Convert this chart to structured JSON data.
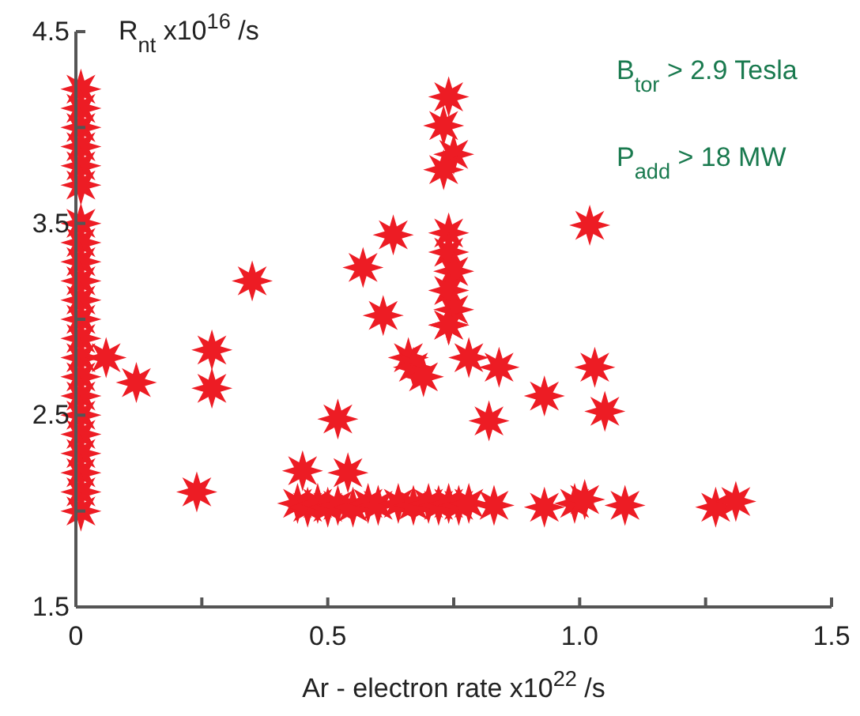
{
  "chart_data": {
    "type": "scatter",
    "ylabel": "R$_{nt}$ x10$^{16}$ /s",
    "xlabel": "Ar - electron rate  x10$^{22}$ /s",
    "annotations": [
      "B$_{tor}$ > 2.9 Tesla",
      "P$_{add}$ > 18 MW"
    ],
    "xlim": [
      0,
      1.5
    ],
    "ylim": [
      1.5,
      4.5
    ],
    "xticks": [
      0,
      {
        "value": 0.25,
        "label": null
      },
      0.5,
      {
        "value": 0.75,
        "label": null
      },
      {
        "value": 1,
        "label": "1.0"
      },
      {
        "value": 1.25,
        "label": null
      },
      1.5
    ],
    "yticks": [
      1.5,
      {
        "value": 2,
        "label": null
      },
      2.5,
      {
        "value": 3,
        "label": null
      },
      3.5,
      {
        "value": 4,
        "label": null
      },
      4.5
    ],
    "grid": false,
    "marker": "star",
    "series": [
      {
        "color": "#ed1c24",
        "x": [
          0.01,
          0.01,
          0.01,
          0.01,
          0.01,
          0.01,
          0.01,
          0.01,
          0.01,
          0.01,
          0.01,
          0.01,
          0.01,
          0.01,
          0.01,
          0.01,
          0.01,
          0.01,
          0.01,
          0.01,
          0.01,
          0.01,
          0.06,
          0.12,
          0.27,
          0.27,
          0.24,
          0.35,
          0.52,
          0.54,
          0.45,
          0.44,
          0.46,
          0.48,
          0.5,
          0.52,
          0.55,
          0.58,
          0.6,
          0.64,
          0.67,
          0.7,
          0.72,
          0.74,
          0.76,
          0.78,
          0.57,
          0.63,
          0.61,
          0.66,
          0.67,
          0.69,
          0.74,
          0.73,
          0.75,
          0.73,
          1.02,
          0.74,
          0.74,
          0.75,
          0.74,
          0.75,
          0.74,
          0.74,
          0.78,
          0.84,
          1.03,
          0.93,
          1.05,
          0.82,
          0.83,
          0.93,
          0.99,
          1.01,
          1.09,
          1.27,
          1.31
        ],
        "values": [
          4.2,
          4.1,
          4.0,
          3.9,
          3.8,
          3.7,
          3.5,
          3.4,
          3.3,
          3.2,
          3.1,
          3.0,
          2.9,
          2.8,
          2.7,
          2.6,
          2.5,
          2.4,
          2.3,
          2.2,
          2.1,
          2.0,
          2.8,
          2.67,
          2.84,
          2.64,
          2.1,
          3.2,
          2.48,
          2.2,
          2.21,
          2.04,
          2.02,
          2.04,
          2.02,
          2.03,
          2.02,
          2.04,
          2.03,
          2.04,
          2.03,
          2.04,
          2.03,
          2.04,
          2.03,
          2.04,
          3.27,
          3.44,
          3.02,
          2.8,
          2.75,
          2.7,
          4.16,
          4.01,
          3.86,
          3.78,
          3.49,
          3.45,
          3.35,
          3.25,
          3.15,
          3.05,
          2.97,
          2.97,
          2.8,
          2.75,
          2.75,
          2.6,
          2.52,
          2.47,
          2.03,
          2.02,
          2.04,
          2.06,
          2.03,
          2.02,
          2.05
        ]
      }
    ]
  }
}
